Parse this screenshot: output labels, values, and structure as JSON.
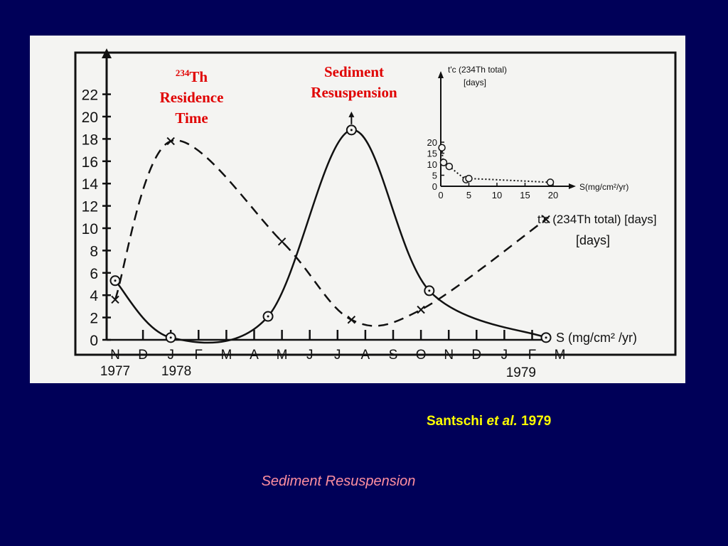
{
  "annotations": {
    "th_label_sup": "234",
    "th_label_a": "Th",
    "th_label_b": "Residence",
    "th_label_c": "Time",
    "sed_label_a": "Sediment",
    "sed_label_b": "Resuspension"
  },
  "citation": {
    "author": "Santschi",
    "etal": "et al.",
    "year": "1979"
  },
  "caption": "Sediment Resuspension",
  "colors": {
    "background": "#000058",
    "label_red": "#e00000",
    "citation_yellow": "#ffff00",
    "caption_pink": "#ff8fa0"
  },
  "chart_data": [
    {
      "type": "line",
      "y_ticks": [
        0,
        2,
        4,
        6,
        8,
        10,
        12,
        14,
        16,
        18,
        20,
        22
      ],
      "ylim": [
        0,
        24
      ],
      "x_tick_labels": [
        "N",
        "D",
        "J",
        "F",
        "M",
        "A",
        "M",
        "J",
        "J",
        "A",
        "S",
        "O",
        "N",
        "D",
        "J",
        "F",
        "M"
      ],
      "x_year_labels": [
        "1977",
        "1978",
        "1979"
      ],
      "series": [
        {
          "name": "S (mg/cm² /yr)",
          "style": "solid",
          "x": [
            0,
            2,
            5.5,
            8.5,
            11.3,
            15.5
          ],
          "values": [
            5.3,
            0.2,
            2.1,
            18.8,
            4.4,
            0.2
          ]
        },
        {
          "name": "t'c (234Th total) [days]",
          "style": "dashed",
          "x": [
            0,
            2,
            6,
            8.5,
            11,
            15.5
          ],
          "values": [
            3.6,
            17.8,
            8.8,
            1.8,
            2.7,
            10.8
          ]
        }
      ],
      "series_label_b": "[days]"
    },
    {
      "type": "scatter",
      "y_axis_label": "t'c (234Th total) [days]",
      "x_axis_label": "S(mg/cm²/yr)",
      "y_ticks": [
        0,
        5,
        10,
        15,
        20
      ],
      "x_ticks": [
        0,
        5,
        10,
        15,
        20
      ],
      "points": {
        "x": [
          0.2,
          0.5,
          1.5,
          4.5,
          5.0,
          19.5
        ],
        "y": [
          17.5,
          10.8,
          9.0,
          3.0,
          3.5,
          1.8
        ]
      }
    }
  ]
}
